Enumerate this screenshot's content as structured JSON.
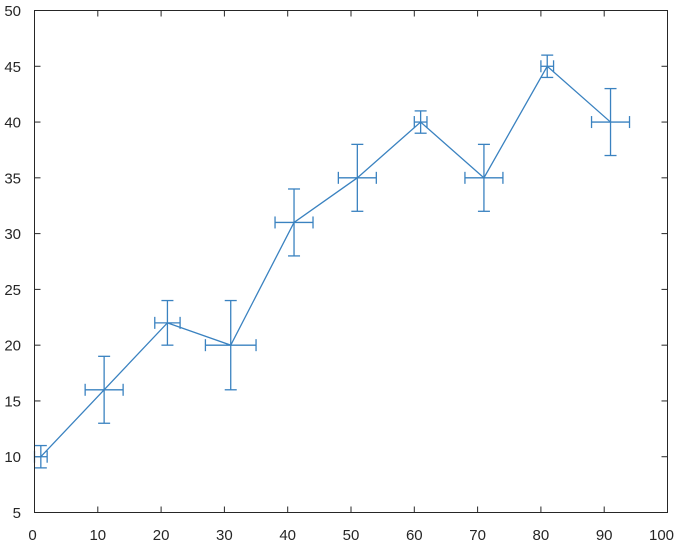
{
  "chart_data": {
    "type": "line",
    "title": "",
    "xlabel": "",
    "ylabel": "",
    "xlim": [
      0,
      100
    ],
    "ylim": [
      5,
      50
    ],
    "xticks": [
      0,
      10,
      20,
      30,
      40,
      50,
      60,
      70,
      80,
      90,
      100
    ],
    "yticks": [
      5,
      10,
      15,
      20,
      25,
      30,
      35,
      40,
      45,
      50
    ],
    "grid": false,
    "series": [
      {
        "color": "#3a82c0",
        "x": [
          1,
          11,
          21,
          31,
          41,
          51,
          61,
          71,
          81,
          91
        ],
        "y": [
          10,
          16,
          22,
          20,
          31,
          35,
          40,
          35,
          45,
          40
        ],
        "y_err": [
          1,
          3,
          2,
          4,
          3,
          3,
          1,
          3,
          1,
          3
        ],
        "x_err": [
          1,
          3,
          2,
          4,
          3,
          3,
          1,
          3,
          1,
          3
        ]
      }
    ]
  }
}
